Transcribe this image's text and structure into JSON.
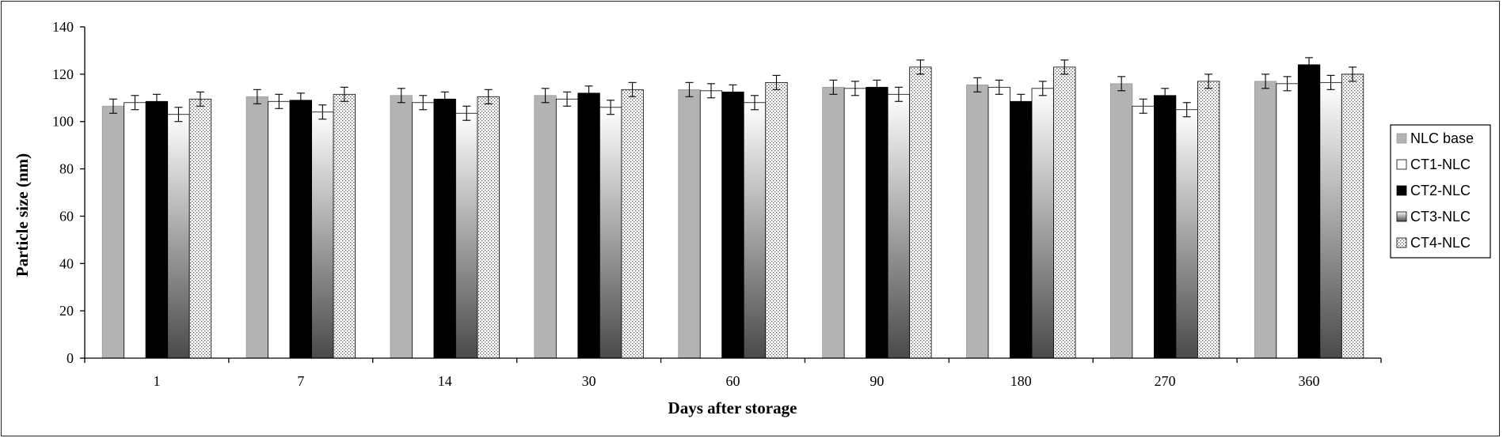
{
  "chart_data": {
    "type": "bar",
    "title": "",
    "xlabel": "Days after storage",
    "ylabel": "Particle size (nm)",
    "ylim": [
      0,
      140
    ],
    "yticks": [
      0,
      20,
      40,
      60,
      80,
      100,
      120,
      140
    ],
    "categories": [
      "1",
      "7",
      "14",
      "30",
      "60",
      "90",
      "180",
      "270",
      "360"
    ],
    "error_bars": true,
    "grid": false,
    "legend_position": "right",
    "series": [
      {
        "name": "NLC base",
        "fill": "solid-gray",
        "color": "#b3b3b3",
        "values": [
          106.5,
          110.5,
          111,
          111,
          113.5,
          114.5,
          115.5,
          116,
          117
        ],
        "errors": [
          3,
          3,
          3,
          3,
          3,
          3,
          3,
          3,
          3
        ]
      },
      {
        "name": "CT1-NLC",
        "fill": "white",
        "color": "#ffffff",
        "values": [
          108,
          108.5,
          108,
          109.5,
          113,
          114,
          114.5,
          106.5,
          116
        ],
        "errors": [
          3,
          3,
          3,
          3,
          3,
          3,
          3,
          3,
          3
        ]
      },
      {
        "name": "CT2-NLC",
        "fill": "black",
        "color": "#000000",
        "values": [
          108.5,
          109,
          109.5,
          112,
          112.5,
          114.5,
          108.5,
          111,
          124
        ],
        "errors": [
          3,
          3,
          3,
          3,
          3,
          3,
          3,
          3,
          3
        ]
      },
      {
        "name": "CT3-NLC",
        "fill": "gradient",
        "color": "#555555",
        "values": [
          103,
          104,
          103.5,
          106,
          108,
          111.5,
          114,
          105,
          116.5
        ],
        "errors": [
          3,
          3,
          3,
          3,
          3,
          3,
          3,
          3,
          3
        ]
      },
      {
        "name": "CT4-NLC",
        "fill": "dotted",
        "color": "#dddddd",
        "values": [
          109.5,
          111.5,
          110.5,
          113.5,
          116.5,
          123,
          123,
          117,
          120
        ],
        "errors": [
          3,
          3,
          3,
          3,
          3,
          3,
          3,
          3,
          3
        ]
      }
    ]
  }
}
